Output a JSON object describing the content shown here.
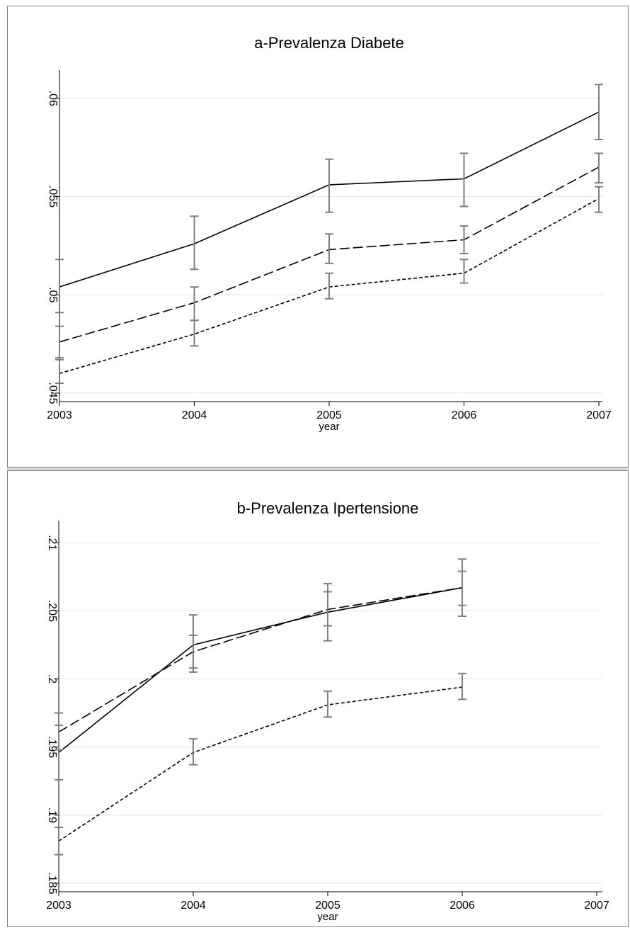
{
  "chart_data": [
    {
      "type": "line",
      "title": "a-Prevalenza Diabete",
      "xlabel": "year",
      "ylabel": "",
      "x": [
        2003,
        2004,
        2005,
        2006,
        2007
      ],
      "x_ticks": [
        "2003",
        "2004",
        "2005",
        "2006",
        "2007"
      ],
      "ylim": [
        0.045,
        0.061
      ],
      "y_ticks": [
        0.045,
        0.05,
        0.055,
        0.06
      ],
      "y_tick_labels": [
        ".045",
        ".05",
        ".055",
        ".06"
      ],
      "grid": true,
      "legend": "none",
      "error_bars": true,
      "series": [
        {
          "style": "solid",
          "values": [
            0.0504,
            0.0526,
            0.0556,
            0.0559,
            0.0593
          ],
          "ci_low": [
            0.0491,
            0.0513,
            0.0542,
            0.0545,
            0.0579
          ],
          "ci_high": [
            0.0518,
            0.054,
            0.0569,
            0.0572,
            0.0607
          ]
        },
        {
          "style": "dashed",
          "values": [
            0.0476,
            0.0496,
            0.0523,
            0.0528,
            0.0565
          ],
          "ci_low": [
            0.0468,
            0.0487,
            0.0516,
            0.0521,
            0.0557
          ],
          "ci_high": [
            0.0484,
            0.0504,
            0.0531,
            0.0535,
            0.0572
          ]
        },
        {
          "style": "dotted",
          "values": [
            0.046,
            0.048,
            0.0504,
            0.0511,
            0.0549
          ],
          "ci_low": [
            0.0455,
            0.0474,
            0.0498,
            0.0506,
            0.0542
          ],
          "ci_high": [
            0.0467,
            0.0487,
            0.0511,
            0.0518,
            0.0555
          ]
        }
      ],
      "colors": {
        "line": "#000000",
        "error_bar": "#7f7f7f",
        "grid": "#e6e6e6",
        "frame": "#7f7f7f"
      }
    },
    {
      "type": "line",
      "title": "b-Prevalenza Ipertensione",
      "xlabel": "year",
      "ylabel": "",
      "x": [
        2003,
        2004,
        2005,
        2006
      ],
      "x_ticks": [
        "2003",
        "2004",
        "2005",
        "2006",
        "2007"
      ],
      "x_tick_values": [
        2003,
        2004,
        2005,
        2006,
        2007
      ],
      "ylim": [
        0.185,
        0.211
      ],
      "y_ticks": [
        0.185,
        0.19,
        0.195,
        0.2,
        0.205,
        0.21
      ],
      "y_tick_labels": [
        ".185",
        ".19",
        ".195",
        ".2",
        ".205",
        ".21"
      ],
      "grid": true,
      "legend": "none",
      "error_bars": true,
      "series": [
        {
          "style": "solid",
          "values": [
            0.1946,
            0.2025,
            0.2049,
            0.2067
          ],
          "ci_low": [
            0.1926,
            0.2005,
            0.2028,
            0.2046
          ],
          "ci_high": [
            0.1966,
            0.2047,
            0.207,
            0.2088
          ]
        },
        {
          "style": "dashed",
          "values": [
            0.1961,
            0.202,
            0.2051,
            0.2067
          ],
          "ci_low": [
            0.1948,
            0.2008,
            0.2039,
            0.2054
          ],
          "ci_high": [
            0.1975,
            0.2032,
            0.2064,
            0.2079
          ]
        },
        {
          "style": "dotted",
          "values": [
            0.1881,
            0.1946,
            0.1981,
            0.1994
          ],
          "ci_low": [
            0.1871,
            0.1937,
            0.1972,
            0.1985
          ],
          "ci_high": [
            0.1891,
            0.1956,
            0.1991,
            0.2004
          ]
        }
      ],
      "colors": {
        "line": "#000000",
        "error_bar": "#7f7f7f",
        "grid": "#e6e6e6",
        "frame": "#7f7f7f"
      }
    }
  ]
}
